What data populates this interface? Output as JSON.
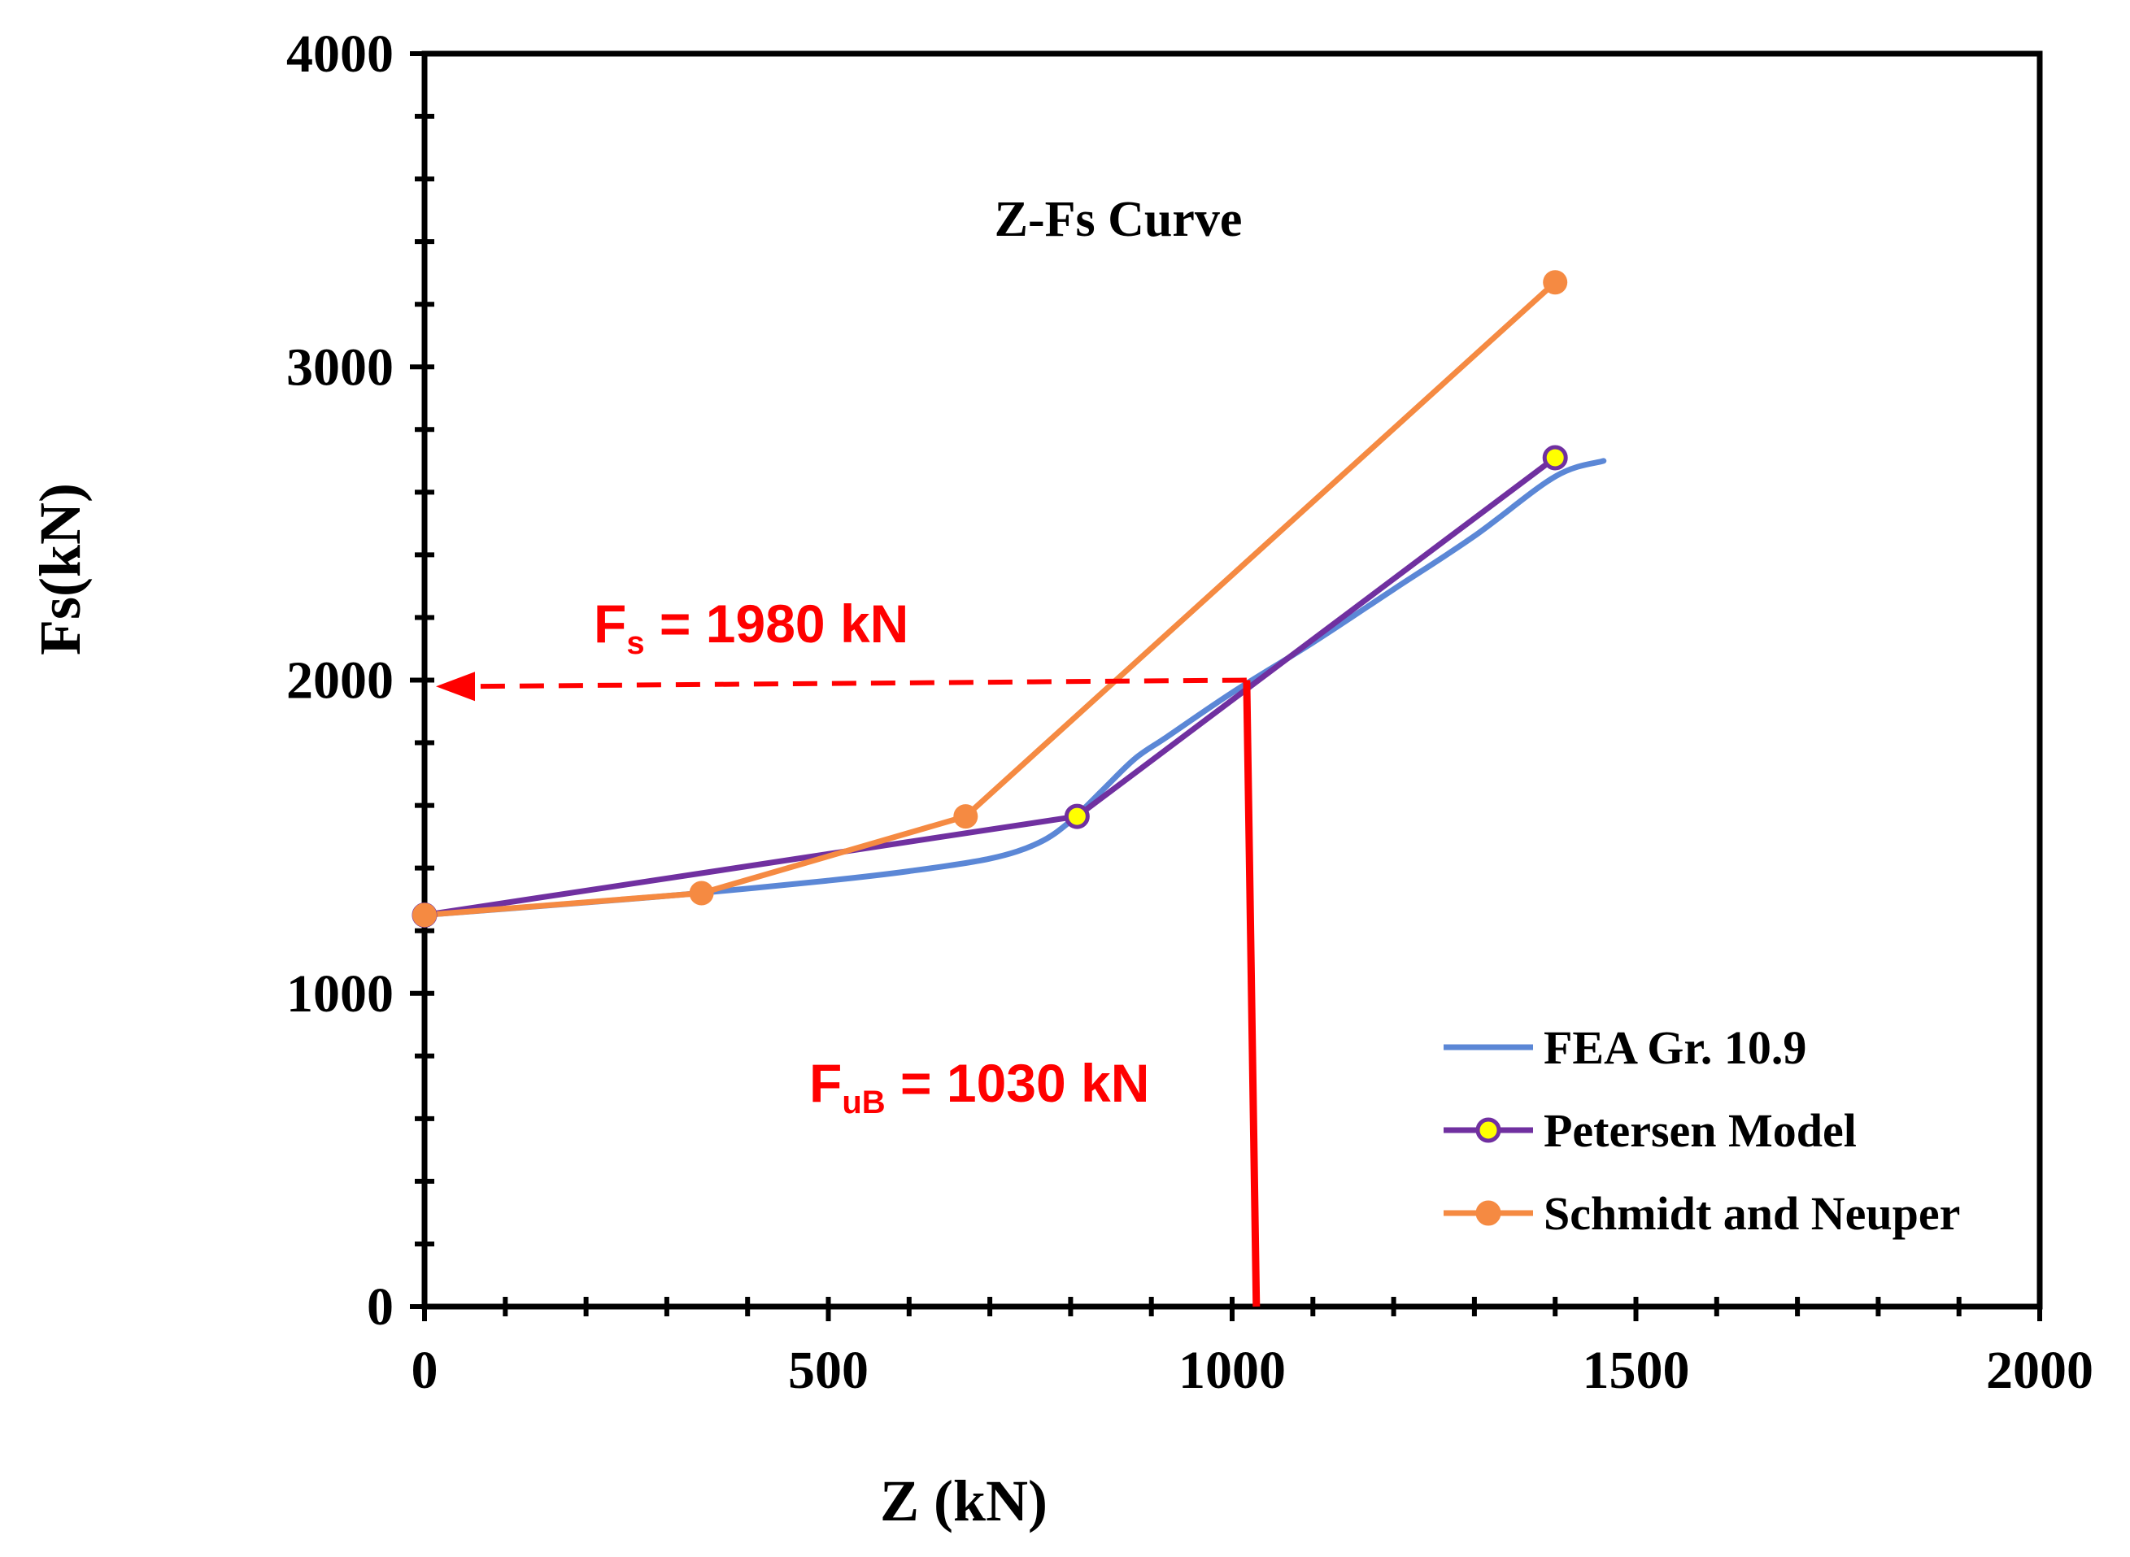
{
  "chart_data": {
    "type": "line",
    "title": "Z-Fs Curve",
    "xlabel": "Z (kN)",
    "ylabel": "Fs(kN)",
    "xlim": [
      0,
      2000
    ],
    "ylim": [
      0,
      4000
    ],
    "x_ticks": [
      "0",
      "500",
      "1000",
      "1500",
      "2000"
    ],
    "y_ticks": [
      "0",
      "1000",
      "2000",
      "3000",
      "4000"
    ],
    "grid": false,
    "legend_position": "bottom-right",
    "series": [
      {
        "name": "FEA Gr. 10.9",
        "color": "#5b87d6",
        "marker": "none",
        "smooth": true,
        "points": [
          [
            0,
            1250
          ],
          [
            200,
            1290
          ],
          [
            340,
            1320
          ],
          [
            500,
            1360
          ],
          [
            600,
            1390
          ],
          [
            700,
            1430
          ],
          [
            760,
            1480
          ],
          [
            800,
            1550
          ],
          [
            840,
            1650
          ],
          [
            880,
            1750
          ],
          [
            920,
            1820
          ],
          [
            1000,
            1960
          ],
          [
            1100,
            2120
          ],
          [
            1200,
            2290
          ],
          [
            1300,
            2460
          ],
          [
            1400,
            2650
          ],
          [
            1460,
            2700
          ]
        ]
      },
      {
        "name": "Petersen Model",
        "color": "#7030a0",
        "marker": "circle",
        "marker_fill": "#ffff00",
        "points": [
          [
            0,
            1250
          ],
          [
            808,
            1565
          ],
          [
            1400,
            2710
          ]
        ]
      },
      {
        "name": "Schmidt and Neuper",
        "color": "#f58a42",
        "marker": "circle",
        "marker_fill": "#f58a42",
        "points": [
          [
            0,
            1250
          ],
          [
            343,
            1320
          ],
          [
            670,
            1565
          ],
          [
            1400,
            3270
          ]
        ]
      }
    ],
    "annotations": [
      {
        "main": "F",
        "sub": "s",
        "rest": " = 1980 kN",
        "value": 1980,
        "axis": "y",
        "color": "#ff0000"
      },
      {
        "main": "F",
        "sub": "uB",
        "rest": " = 1030 kN",
        "value": 1030,
        "axis": "x",
        "color": "#ff0000"
      }
    ]
  }
}
